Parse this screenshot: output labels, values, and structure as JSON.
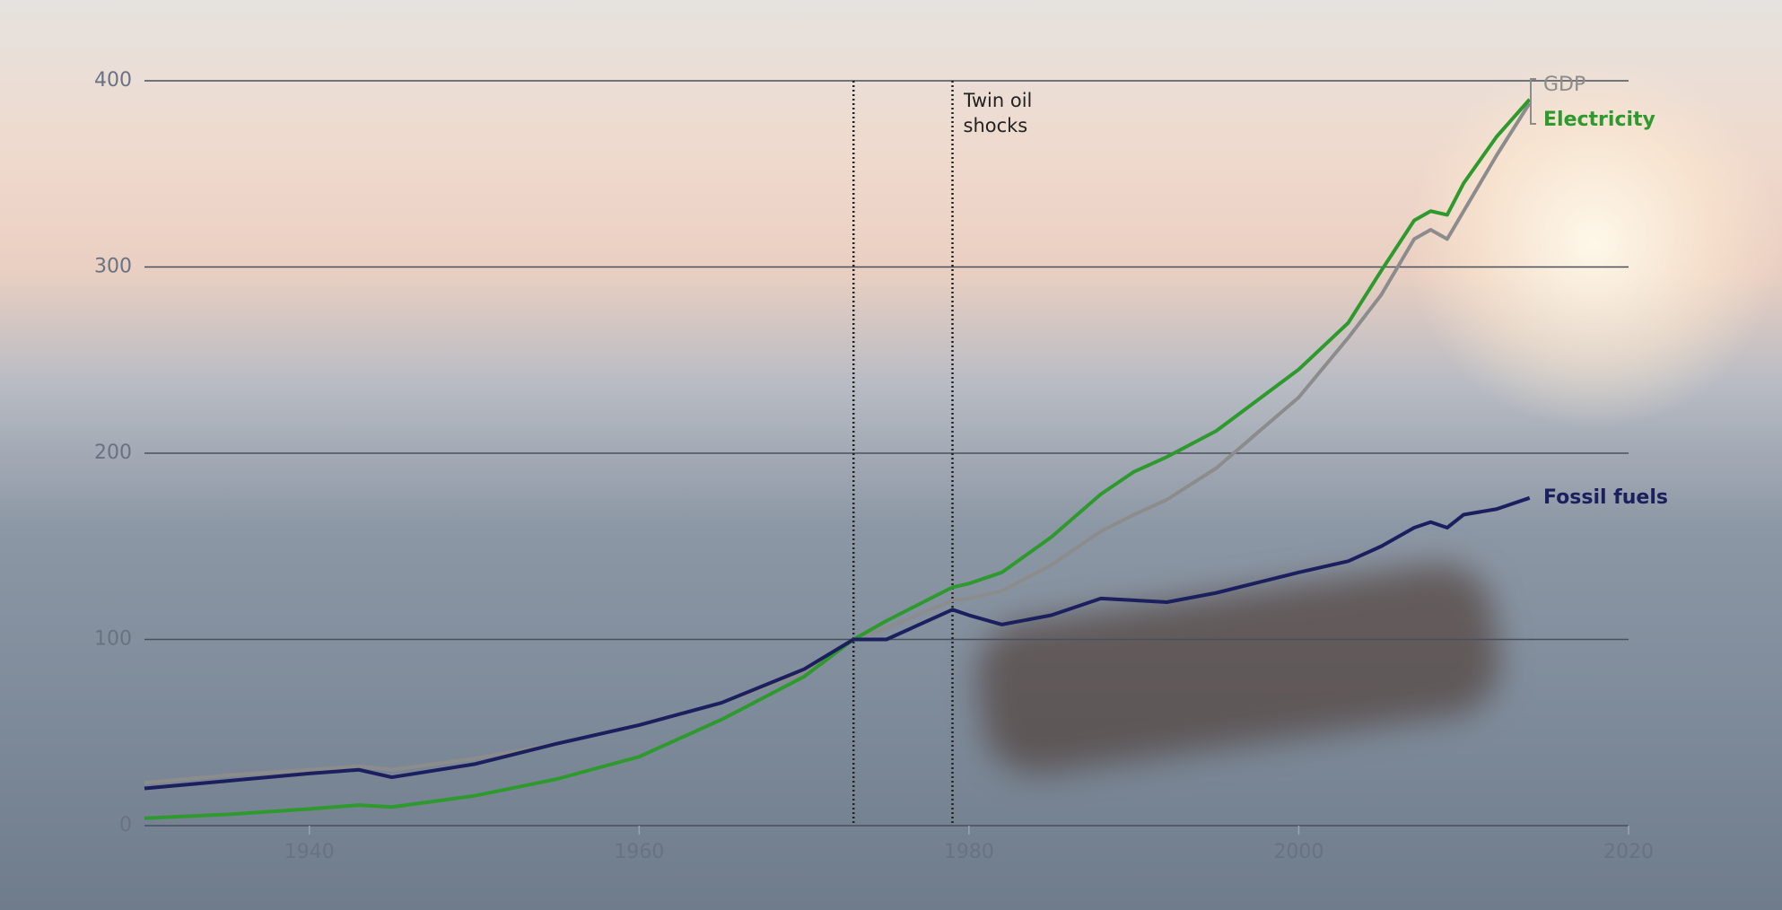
{
  "chart_data": {
    "type": "line",
    "x": [
      1930,
      1935,
      1940,
      1943,
      1945,
      1950,
      1955,
      1960,
      1965,
      1970,
      1973,
      1975,
      1979,
      1980,
      1982,
      1985,
      1988,
      1990,
      1992,
      1995,
      2000,
      2003,
      2005,
      2007,
      2008,
      2009,
      2010,
      2012,
      2014
    ],
    "series": [
      {
        "name": "GDP",
        "color": "#8c8c8c",
        "values": [
          23,
          27,
          30,
          32,
          30,
          36,
          44,
          54,
          66,
          82,
          100,
          106,
          121,
          122,
          126,
          140,
          158,
          167,
          175,
          192,
          230,
          262,
          285,
          315,
          320,
          315,
          330,
          360,
          388
        ]
      },
      {
        "name": "Electricity",
        "color": "#2e9a2e",
        "values": [
          4,
          6,
          9,
          11,
          10,
          16,
          25,
          37,
          57,
          80,
          100,
          110,
          128,
          130,
          136,
          155,
          178,
          190,
          198,
          212,
          245,
          270,
          298,
          325,
          330,
          328,
          345,
          370,
          390
        ]
      },
      {
        "name": "Fossil fuels",
        "color": "#1b1f5e",
        "values": [
          20,
          24,
          28,
          30,
          26,
          33,
          44,
          54,
          66,
          84,
          100,
          100,
          116,
          113,
          108,
          113,
          122,
          121,
          120,
          125,
          136,
          142,
          150,
          160,
          163,
          160,
          167,
          170,
          176
        ]
      }
    ],
    "annotation": {
      "text": "Twin oil shocks",
      "x": [
        1973,
        1979
      ]
    },
    "xlim": [
      1930,
      2020
    ],
    "xticks": [
      1940,
      1960,
      1980,
      2000,
      2020
    ],
    "ylim": [
      0,
      400
    ],
    "yticks": [
      0,
      100,
      200,
      300,
      400
    ],
    "grid": true
  }
}
